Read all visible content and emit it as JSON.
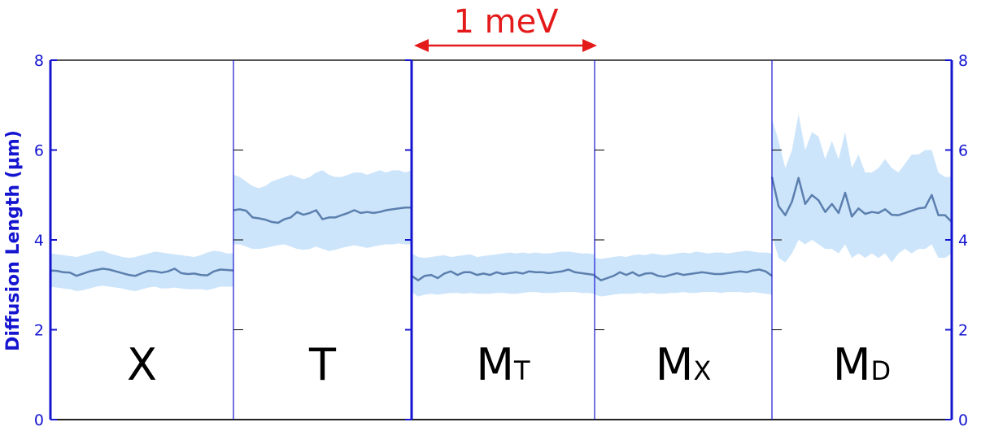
{
  "chart_data": {
    "type": "line",
    "ylabel": "Diffusion Length (μm)",
    "ylim": [
      0,
      8
    ],
    "yticks": [
      0,
      2,
      4,
      6,
      8
    ],
    "scale_bar": "1 meV",
    "colors": {
      "line": "#5b7fae",
      "band": "#cde5fb",
      "axis": "#1515d0",
      "scale_bar": "#e41a1a"
    },
    "panels": [
      {
        "main": "X",
        "sub": "",
        "values": [
          3.32,
          3.31,
          3.28,
          3.27,
          3.2,
          3.25,
          3.3,
          3.33,
          3.36,
          3.34,
          3.3,
          3.26,
          3.22,
          3.2,
          3.26,
          3.31,
          3.3,
          3.27,
          3.3,
          3.36,
          3.26,
          3.24,
          3.25,
          3.22,
          3.21,
          3.3,
          3.34,
          3.33,
          3.32
        ],
        "upper": [
          3.7,
          3.68,
          3.66,
          3.64,
          3.62,
          3.66,
          3.7,
          3.74,
          3.76,
          3.7,
          3.66,
          3.62,
          3.6,
          3.62,
          3.66,
          3.7,
          3.74,
          3.72,
          3.7,
          3.68,
          3.66,
          3.64,
          3.62,
          3.66,
          3.72,
          3.76,
          3.74,
          3.7,
          3.7
        ],
        "lower": [
          2.96,
          2.94,
          2.92,
          2.9,
          2.86,
          2.88,
          2.92,
          2.96,
          2.98,
          2.96,
          2.94,
          2.92,
          2.88,
          2.86,
          2.9,
          2.94,
          2.96,
          2.92,
          2.92,
          2.94,
          2.92,
          2.9,
          2.9,
          2.9,
          2.88,
          2.92,
          2.96,
          2.96,
          2.96
        ]
      },
      {
        "main": "T",
        "sub": "",
        "values": [
          4.66,
          4.68,
          4.65,
          4.5,
          4.48,
          4.45,
          4.4,
          4.38,
          4.46,
          4.5,
          4.62,
          4.56,
          4.6,
          4.66,
          4.46,
          4.5,
          4.5,
          4.55,
          4.6,
          4.66,
          4.6,
          4.62,
          4.6,
          4.62,
          4.66,
          4.68,
          4.7,
          4.72,
          4.72
        ],
        "upper": [
          5.45,
          5.4,
          5.3,
          5.2,
          5.15,
          5.2,
          5.3,
          5.35,
          5.4,
          5.45,
          5.4,
          5.35,
          5.4,
          5.5,
          5.55,
          5.45,
          5.4,
          5.4,
          5.45,
          5.5,
          5.5,
          5.45,
          5.5,
          5.55,
          5.5,
          5.55,
          5.55,
          5.5,
          5.55
        ],
        "lower": [
          3.9,
          3.9,
          3.85,
          3.8,
          3.8,
          3.82,
          3.85,
          3.88,
          3.9,
          3.85,
          3.8,
          3.78,
          3.8,
          3.85,
          3.8,
          3.75,
          3.78,
          3.82,
          3.85,
          3.88,
          3.85,
          3.82,
          3.85,
          3.88,
          3.9,
          3.9,
          3.92,
          3.9,
          3.9
        ]
      },
      {
        "main": "M",
        "sub": "T",
        "values": [
          3.2,
          3.1,
          3.2,
          3.22,
          3.15,
          3.25,
          3.3,
          3.22,
          3.28,
          3.28,
          3.22,
          3.25,
          3.22,
          3.28,
          3.24,
          3.26,
          3.28,
          3.25,
          3.3,
          3.28,
          3.28,
          3.26,
          3.28,
          3.3,
          3.34,
          3.28,
          3.26,
          3.24,
          3.22
        ],
        "upper": [
          3.7,
          3.62,
          3.6,
          3.62,
          3.64,
          3.66,
          3.62,
          3.64,
          3.66,
          3.68,
          3.62,
          3.64,
          3.66,
          3.68,
          3.7,
          3.72,
          3.7,
          3.72,
          3.7,
          3.72,
          3.7,
          3.7,
          3.72,
          3.74,
          3.74,
          3.72,
          3.7,
          3.7,
          3.68
        ],
        "lower": [
          2.84,
          2.74,
          2.78,
          2.8,
          2.78,
          2.8,
          2.82,
          2.82,
          2.8,
          2.82,
          2.8,
          2.8,
          2.8,
          2.82,
          2.82,
          2.8,
          2.8,
          2.82,
          2.84,
          2.84,
          2.82,
          2.82,
          2.82,
          2.84,
          2.84,
          2.84,
          2.82,
          2.82,
          2.8
        ]
      },
      {
        "main": "M",
        "sub": "X",
        "values": [
          3.2,
          3.1,
          3.15,
          3.2,
          3.28,
          3.22,
          3.28,
          3.2,
          3.25,
          3.26,
          3.2,
          3.18,
          3.22,
          3.26,
          3.22,
          3.24,
          3.26,
          3.28,
          3.26,
          3.24,
          3.24,
          3.26,
          3.28,
          3.3,
          3.28,
          3.32,
          3.34,
          3.3,
          3.2
        ],
        "upper": [
          3.6,
          3.58,
          3.6,
          3.62,
          3.64,
          3.62,
          3.66,
          3.68,
          3.66,
          3.7,
          3.68,
          3.66,
          3.68,
          3.7,
          3.72,
          3.7,
          3.74,
          3.72,
          3.7,
          3.72,
          3.72,
          3.7,
          3.72,
          3.74,
          3.76,
          3.74,
          3.72,
          3.72,
          3.7
        ],
        "lower": [
          2.78,
          2.74,
          2.76,
          2.78,
          2.8,
          2.8,
          2.8,
          2.82,
          2.8,
          2.82,
          2.8,
          2.8,
          2.82,
          2.82,
          2.84,
          2.82,
          2.82,
          2.84,
          2.84,
          2.84,
          2.82,
          2.84,
          2.84,
          2.84,
          2.82,
          2.84,
          2.82,
          2.8,
          2.78
        ]
      },
      {
        "main": "M",
        "sub": "D",
        "values": [
          5.4,
          4.75,
          4.55,
          4.85,
          5.38,
          4.8,
          5.0,
          4.88,
          4.62,
          4.8,
          4.6,
          5.05,
          4.52,
          4.7,
          4.58,
          4.62,
          4.6,
          4.68,
          4.56,
          4.55,
          4.6,
          4.65,
          4.7,
          4.72,
          5.0,
          4.55,
          4.55,
          4.4
        ],
        "upper": [
          6.7,
          6.2,
          5.6,
          6.0,
          6.8,
          6.0,
          6.4,
          6.3,
          5.8,
          6.2,
          5.8,
          6.4,
          5.6,
          5.9,
          5.5,
          5.5,
          5.6,
          5.8,
          5.6,
          5.5,
          5.7,
          5.9,
          5.9,
          6.0,
          6.0,
          5.5,
          5.4,
          5.4
        ],
        "lower": [
          4.1,
          3.6,
          3.5,
          3.7,
          4.0,
          3.9,
          4.0,
          3.9,
          3.8,
          3.8,
          3.7,
          3.9,
          3.6,
          3.7,
          3.6,
          3.7,
          3.6,
          3.7,
          3.5,
          3.7,
          3.8,
          3.7,
          3.8,
          3.8,
          3.9,
          3.6,
          3.6,
          3.7
        ]
      }
    ]
  }
}
